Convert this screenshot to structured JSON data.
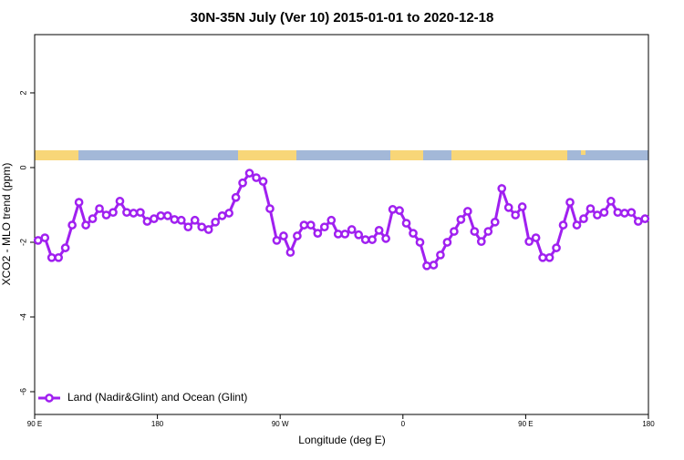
{
  "chart_data": {
    "type": "line",
    "title": "30N-35N July (Ver 10)   2015-01-01 to 2020-12-18",
    "x_label": "Longitude (deg E)",
    "y_label": "XCO2 - MLO trend (ppm)",
    "x": [
      92.5,
      97.5,
      102.5,
      107.5,
      112.5,
      117.5,
      122.5,
      127.5,
      132.5,
      137.5,
      142.5,
      147.5,
      152.5,
      157.5,
      162.5,
      167.5,
      172.5,
      177.5,
      182.5,
      187.5,
      192.5,
      197.5,
      202.5,
      207.5,
      212.5,
      217.5,
      222.5,
      227.5,
      232.5,
      237.5,
      242.5,
      247.5,
      252.5,
      257.5,
      262.5,
      267.5,
      272.5,
      277.5,
      282.5,
      287.5,
      292.5,
      297.5,
      302.5,
      307.5,
      312.5,
      317.5,
      322.5,
      327.5,
      332.5,
      337.5,
      342.5,
      347.5,
      352.5,
      357.5,
      362.5,
      367.5,
      372.5,
      377.5,
      382.5,
      387.5,
      392.5,
      397.5,
      402.5,
      407.5,
      412.5,
      417.5,
      422.5,
      427.5,
      432.5,
      437.5,
      442.5,
      447.5,
      452.5,
      457.5,
      462.5,
      467.5,
      472.5,
      477.5,
      482.5,
      487.5,
      492.5,
      497.5,
      502.5,
      507.5,
      512.5,
      517.5,
      522.5,
      527.5,
      532.5,
      537.5
    ],
    "series": [
      {
        "name": "Land (Nadir&Glint) and Ocean (Glint)",
        "color": "#a020f0",
        "values": [
          -1.95,
          -1.88,
          -2.41,
          -2.41,
          -2.15,
          -1.54,
          -0.93,
          -1.54,
          -1.37,
          -1.1,
          -1.27,
          -1.2,
          -0.9,
          -1.2,
          -1.22,
          -1.2,
          -1.44,
          -1.37,
          -1.29,
          -1.29,
          -1.39,
          -1.41,
          -1.59,
          -1.41,
          -1.59,
          -1.66,
          -1.46,
          -1.29,
          -1.22,
          -0.8,
          -0.41,
          -0.15,
          -0.27,
          -0.37,
          -1.1,
          -1.95,
          -1.83,
          -2.27,
          -1.83,
          -1.54,
          -1.54,
          -1.76,
          -1.59,
          -1.41,
          -1.78,
          -1.78,
          -1.66,
          -1.8,
          -1.93,
          -1.93,
          -1.68,
          -1.9,
          -1.12,
          -1.15,
          -1.49,
          -1.76,
          -2.0,
          -2.63,
          -2.61,
          -2.34,
          -2.0,
          -1.71,
          -1.39,
          -1.17,
          -1.71,
          -1.98,
          -1.71,
          -1.46,
          -0.56,
          -1.07,
          -1.27,
          -1.05,
          -1.98,
          -1.88,
          -2.41,
          -2.41,
          -2.15,
          -1.54,
          -0.93,
          -1.54,
          -1.37,
          -1.1,
          -1.27,
          -1.2,
          -0.9,
          -1.2,
          -1.22,
          -1.2,
          -1.44,
          -1.37
        ]
      }
    ],
    "xlim": [
      90,
      540
    ],
    "xticks": [
      {
        "value": 90,
        "label": "90 E"
      },
      {
        "value": 180,
        "label": "180"
      },
      {
        "value": 270,
        "label": "90 W"
      },
      {
        "value": 360,
        "label": "0"
      },
      {
        "value": 450,
        "label": "90 E"
      },
      {
        "value": 540,
        "label": "180"
      }
    ],
    "ylim": [
      -6.61,
      3.56
    ],
    "yticks": [
      -6,
      -4,
      -2,
      0,
      2
    ],
    "legend": "bottom-left"
  }
}
